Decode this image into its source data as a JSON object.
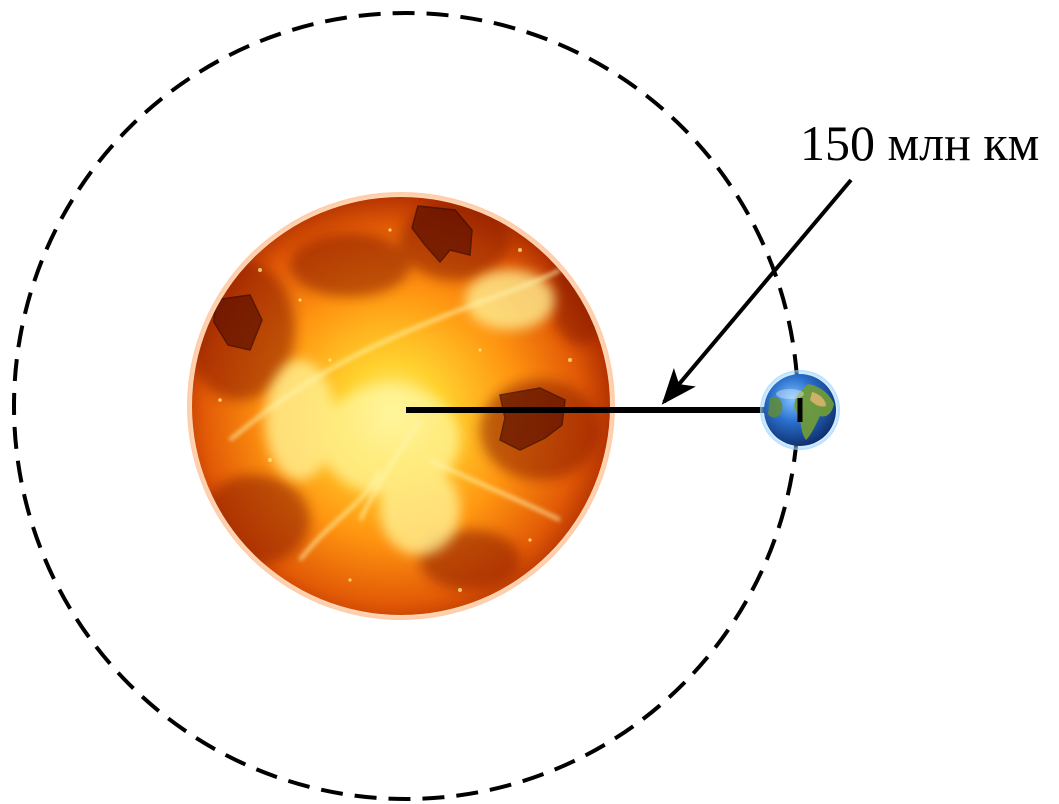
{
  "diagram": {
    "distance_label": "150 млн км"
  },
  "colors": {
    "orbit": "#000000",
    "distance_line": "#000000",
    "sun_core": "#fff36a",
    "sun_mid": "#ff9a10",
    "sun_edge": "#b32800",
    "earth_ocean": "#1f5fb8",
    "earth_land": "#6f9a3a",
    "earth_desert": "#d9b36a"
  },
  "icons": {
    "sun": "sun-icon",
    "earth": "earth-icon"
  }
}
